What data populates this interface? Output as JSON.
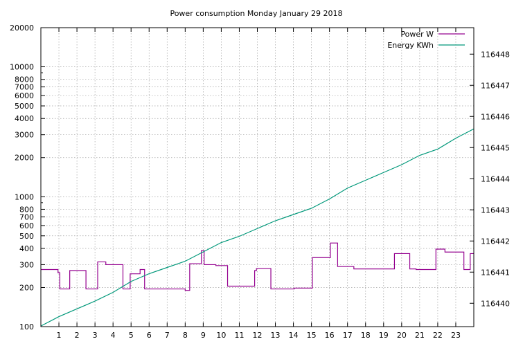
{
  "chart_data": {
    "type": "line",
    "title": "Power consumption Monday January 29 2018",
    "xlabel": "",
    "ylabel": "",
    "y2label": "",
    "xlim": [
      0,
      24
    ],
    "ylim": [
      100,
      20000
    ],
    "yscale": "log",
    "y2lim": [
      116439.25,
      116448.85
    ],
    "grid": true,
    "legend_position": "top-right",
    "x_ticks": [
      "1",
      "2",
      "3",
      "4",
      "5",
      "6",
      "7",
      "8",
      "9",
      "10",
      "11",
      "12",
      "13",
      "14",
      "15",
      "16",
      "17",
      "18",
      "19",
      "20",
      "21",
      "22",
      "23"
    ],
    "y_ticks": [
      "100",
      "200",
      "300",
      "400",
      "500",
      "600",
      "700",
      "800",
      "1000",
      "2000",
      "3000",
      "4000",
      "5000",
      "6000",
      "7000",
      "8000",
      "10000",
      "20000"
    ],
    "y2_ticks": [
      "116440",
      "116441",
      "116442",
      "116443",
      "116444",
      "116445",
      "116446",
      "116447",
      "116448"
    ],
    "series": [
      {
        "name": "Power W",
        "axis": "y",
        "color": "#94008f",
        "step": true,
        "points": [
          [
            0,
            275
          ],
          [
            0.95,
            275
          ],
          [
            0.95,
            260
          ],
          [
            1.05,
            260
          ],
          [
            1.05,
            195
          ],
          [
            1.6,
            195
          ],
          [
            1.6,
            270
          ],
          [
            2.5,
            270
          ],
          [
            2.5,
            195
          ],
          [
            3.15,
            195
          ],
          [
            3.15,
            315
          ],
          [
            3.6,
            315
          ],
          [
            3.6,
            300
          ],
          [
            4.55,
            300
          ],
          [
            4.55,
            195
          ],
          [
            4.95,
            195
          ],
          [
            4.95,
            255
          ],
          [
            5.5,
            255
          ],
          [
            5.5,
            275
          ],
          [
            5.75,
            275
          ],
          [
            5.75,
            195
          ],
          [
            8.0,
            195
          ],
          [
            8.0,
            190
          ],
          [
            8.25,
            190
          ],
          [
            8.25,
            305
          ],
          [
            8.9,
            305
          ],
          [
            8.9,
            385
          ],
          [
            9.05,
            385
          ],
          [
            9.05,
            300
          ],
          [
            9.7,
            300
          ],
          [
            9.7,
            295
          ],
          [
            10.35,
            295
          ],
          [
            10.35,
            205
          ],
          [
            11.85,
            205
          ],
          [
            11.85,
            270
          ],
          [
            11.95,
            270
          ],
          [
            11.95,
            280
          ],
          [
            12.75,
            280
          ],
          [
            12.75,
            195
          ],
          [
            14.05,
            195
          ],
          [
            14.05,
            198
          ],
          [
            15.05,
            198
          ],
          [
            15.05,
            340
          ],
          [
            16.05,
            340
          ],
          [
            16.05,
            440
          ],
          [
            16.45,
            440
          ],
          [
            16.45,
            290
          ],
          [
            17.35,
            290
          ],
          [
            17.35,
            278
          ],
          [
            19.6,
            278
          ],
          [
            19.6,
            365
          ],
          [
            20.45,
            365
          ],
          [
            20.45,
            278
          ],
          [
            20.8,
            278
          ],
          [
            20.8,
            275
          ],
          [
            21.9,
            275
          ],
          [
            21.9,
            395
          ],
          [
            22.4,
            395
          ],
          [
            22.4,
            375
          ],
          [
            23.45,
            375
          ],
          [
            23.45,
            275
          ],
          [
            23.8,
            275
          ],
          [
            23.8,
            365
          ],
          [
            24,
            365
          ]
        ]
      },
      {
        "name": "Energy KWh",
        "axis": "y2",
        "color": "#00987a",
        "step": false,
        "points": [
          [
            0,
            116439.27
          ],
          [
            1,
            116439.57
          ],
          [
            2,
            116439.82
          ],
          [
            3,
            116440.07
          ],
          [
            4,
            116440.35
          ],
          [
            5,
            116440.7
          ],
          [
            6,
            116440.95
          ],
          [
            7,
            116441.15
          ],
          [
            8,
            116441.35
          ],
          [
            9,
            116441.65
          ],
          [
            10,
            116441.95
          ],
          [
            11,
            116442.15
          ],
          [
            12,
            116442.4
          ],
          [
            13,
            116442.65
          ],
          [
            14,
            116442.85
          ],
          [
            15,
            116443.05
          ],
          [
            16,
            116443.35
          ],
          [
            17,
            116443.7
          ],
          [
            18,
            116443.95
          ],
          [
            19,
            116444.2
          ],
          [
            20,
            116444.45
          ],
          [
            21,
            116444.75
          ],
          [
            22,
            116444.95
          ],
          [
            23,
            116445.3
          ],
          [
            24,
            116445.6
          ]
        ]
      }
    ]
  }
}
